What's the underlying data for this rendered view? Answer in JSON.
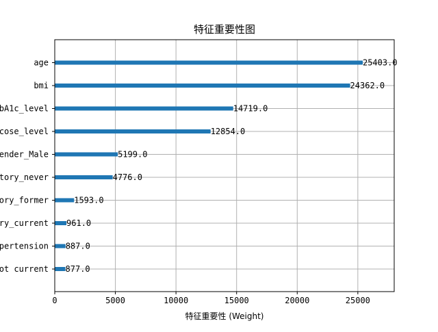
{
  "chart_data": {
    "type": "bar",
    "orientation": "horizontal",
    "title": "特征重要性图",
    "xlabel": "特征重要性 (Weight)",
    "ylabel": "",
    "xlim": [
      0,
      28000
    ],
    "xticks": [
      0,
      5000,
      10000,
      15000,
      20000,
      25000
    ],
    "grid": true,
    "categories": [
      "age",
      "bmi",
      "bA1c_level",
      "cose_level",
      "ender_Male",
      "tory_never",
      "ory_former",
      "ry_current",
      "pertension",
      "ot current"
    ],
    "values": [
      25403.0,
      24362.0,
      14719.0,
      12854.0,
      5199.0,
      4776.0,
      1593.0,
      961.0,
      887.0,
      877.0
    ],
    "data_labels": [
      "25403.0",
      "24362.0",
      "14719.0",
      "12854.0",
      "5199.0",
      "4776.0",
      "1593.0",
      "961.0",
      "887.0",
      "877.0"
    ],
    "bar_color": "#1f77b4",
    "grid_color": "#b0b0b0"
  }
}
